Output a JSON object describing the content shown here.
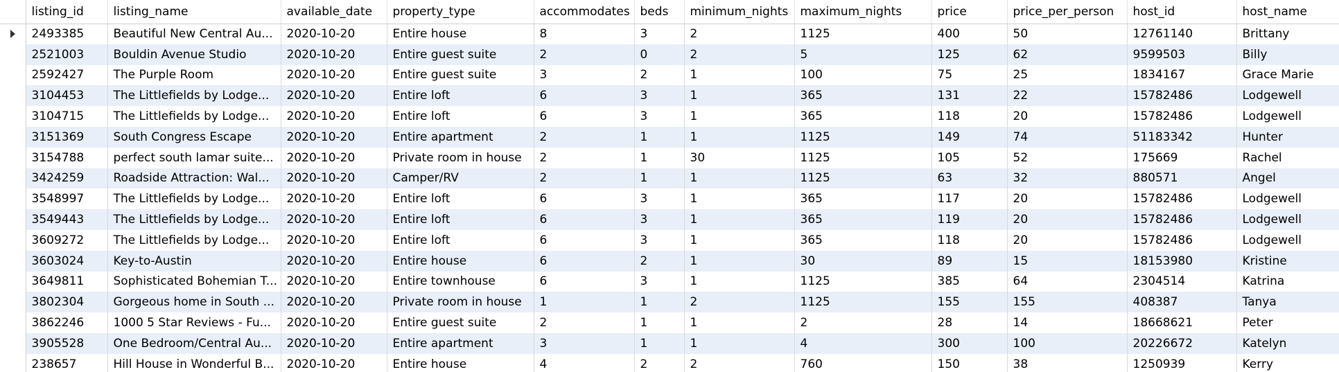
{
  "columns": [
    "listing_id",
    "listing_name",
    "available_date",
    "property_type",
    "accommodates",
    "beds",
    "minimum_nights",
    "maximum_nights",
    "price",
    "price_per_person",
    "host_id",
    "host_name"
  ],
  "current_row_indicator": "current-row-arrow-icon",
  "rows": [
    [
      "2493385",
      "Beautiful New Central Au...",
      "2020-10-20",
      "Entire house",
      "8",
      "3",
      "2",
      "1125",
      "400",
      "50",
      "12761140",
      "Brittany"
    ],
    [
      "2521003",
      "Bouldin Avenue Studio",
      "2020-10-20",
      "Entire guest suite",
      "2",
      "0",
      "2",
      "5",
      "125",
      "62",
      "9599503",
      "Billy"
    ],
    [
      "2592427",
      "The Purple Room",
      "2020-10-20",
      "Entire guest suite",
      "3",
      "2",
      "1",
      "100",
      "75",
      "25",
      "1834167",
      "Grace Marie"
    ],
    [
      "3104453",
      "The Littlefields by Lodge...",
      "2020-10-20",
      "Entire loft",
      "6",
      "3",
      "1",
      "365",
      "131",
      "22",
      "15782486",
      "Lodgewell"
    ],
    [
      "3104715",
      "The Littlefields by Lodge...",
      "2020-10-20",
      "Entire loft",
      "6",
      "3",
      "1",
      "365",
      "118",
      "20",
      "15782486",
      "Lodgewell"
    ],
    [
      "3151369",
      "South Congress Escape",
      "2020-10-20",
      "Entire apartment",
      "2",
      "1",
      "1",
      "1125",
      "149",
      "74",
      "51183342",
      "Hunter"
    ],
    [
      "3154788",
      "perfect south lamar suite...",
      "2020-10-20",
      "Private room in house",
      "2",
      "1",
      "30",
      "1125",
      "105",
      "52",
      "175669",
      "Rachel"
    ],
    [
      "3424259",
      "Roadside Attraction: Wal...",
      "2020-10-20",
      "Camper/RV",
      "2",
      "1",
      "1",
      "1125",
      "63",
      "32",
      "880571",
      "Angel"
    ],
    [
      "3548997",
      "The Littlefields by Lodge...",
      "2020-10-20",
      "Entire loft",
      "6",
      "3",
      "1",
      "365",
      "117",
      "20",
      "15782486",
      "Lodgewell"
    ],
    [
      "3549443",
      "The Littlefields by Lodge...",
      "2020-10-20",
      "Entire loft",
      "6",
      "3",
      "1",
      "365",
      "119",
      "20",
      "15782486",
      "Lodgewell"
    ],
    [
      "3609272",
      "The Littlefields by Lodge...",
      "2020-10-20",
      "Entire loft",
      "6",
      "3",
      "1",
      "365",
      "118",
      "20",
      "15782486",
      "Lodgewell"
    ],
    [
      "3603024",
      "Key-to-Austin",
      "2020-10-20",
      "Entire house",
      "6",
      "2",
      "1",
      "30",
      "89",
      "15",
      "18153980",
      "Kristine"
    ],
    [
      "3649811",
      "Sophisticated Bohemian T...",
      "2020-10-20",
      "Entire townhouse",
      "6",
      "3",
      "1",
      "1125",
      "385",
      "64",
      "2304514",
      "Katrina"
    ],
    [
      "3802304",
      "Gorgeous home in South ...",
      "2020-10-20",
      "Private room in house",
      "1",
      "1",
      "2",
      "1125",
      "155",
      "155",
      "408387",
      "Tanya"
    ],
    [
      "3862246",
      "1000 5 Star Reviews - Fu...",
      "2020-10-20",
      "Entire guest suite",
      "2",
      "1",
      "1",
      "2",
      "28",
      "14",
      "18668621",
      "Peter"
    ],
    [
      "3905528",
      "One Bedroom/Central Au...",
      "2020-10-20",
      "Entire apartment",
      "3",
      "1",
      "1",
      "4",
      "300",
      "100",
      "20226672",
      "Katelyn"
    ],
    [
      "238657",
      "Hill House in Wonderful B...",
      "2020-10-20",
      "Entire house",
      "4",
      "2",
      "2",
      "760",
      "150",
      "38",
      "1250939",
      "Kerry"
    ]
  ]
}
